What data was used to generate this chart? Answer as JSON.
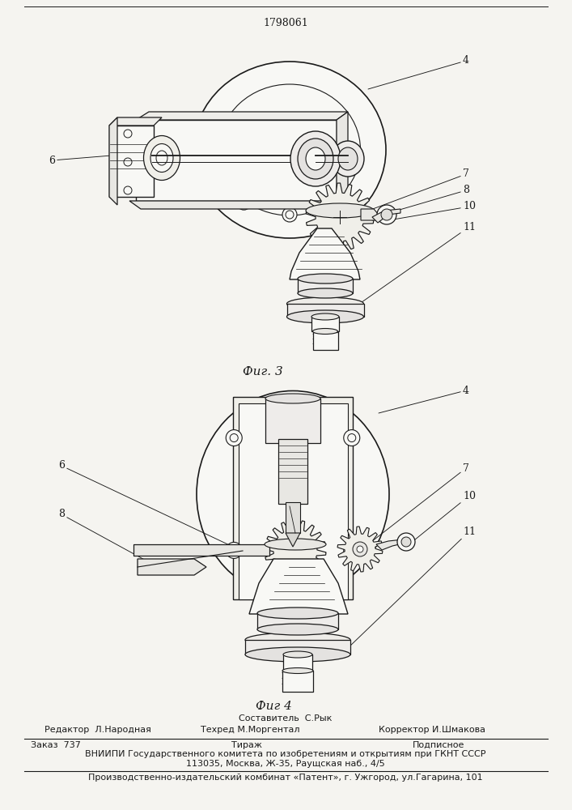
{
  "patent_number": "1798061",
  "fig3_label": "Фиг. 3",
  "fig4_label": "Фиг 4",
  "bg_color": "#f5f4f0",
  "line_color": "#1a1a1a",
  "editor_line": "Редактор  Л.Народная",
  "composer_label": "Составитель  С.Рык",
  "techred_line": "Техред М.Моргентал",
  "corrector_line": "Корректор И.Шмакова",
  "order_line": "Заказ  737",
  "tirazh_label": "Тираж",
  "podpisnoe_label": "Подписное",
  "vniip_line": "ВНИИПИ Государственного комитета по изобретениям и открытиям при ГКНТ СССР",
  "address_line": "113035, Москва, Ж-35, Раущская наб., 4/5",
  "producer_line": "Производственно-издательский комбинат «Патент», г. Ужгород, ул.Гагарина, 101"
}
